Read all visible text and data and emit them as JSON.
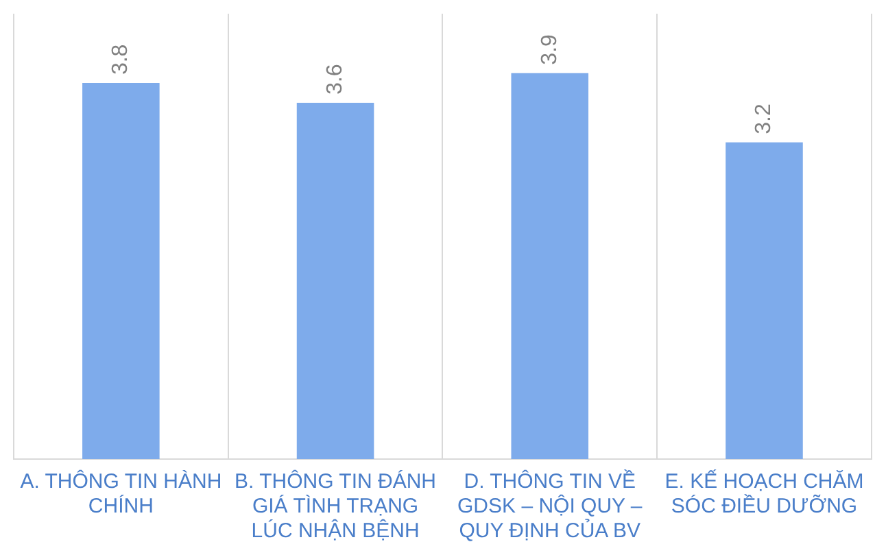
{
  "chart_data": {
    "type": "bar",
    "categories": [
      "A. THÔNG TIN HÀNH CHÍNH",
      "B. THÔNG TIN ĐÁNH GIÁ TÌNH TRẠNG LÚC NHẬN BỆNH",
      "D. THÔNG TIN VỀ GDSK – NỘI QUY – QUY ĐỊNH CỦA BV",
      "E. KẾ HOẠCH CHĂM SÓC ĐIỀU DƯỠNG"
    ],
    "values": [
      3.8,
      3.6,
      3.9,
      3.2
    ],
    "color": "#7eabeb",
    "ylim": [
      0,
      4.5
    ],
    "grid": "x",
    "legend": false,
    "data_labels": true
  }
}
